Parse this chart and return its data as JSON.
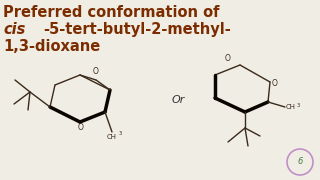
{
  "bg_color": "#f0ede5",
  "title_line1": "Preferred conformation of",
  "title_line2_italic": "cis",
  "title_line2_normal": "-5-tert-butyl-2-methyl-",
  "title_line3": "1,3-dioxane",
  "title_color": "#7B2D00",
  "title_fontsize": 10.5,
  "or_text": "Or",
  "line_color": "#3a2a1a",
  "bold_line_color": "#0a0500",
  "logo_color": "#c090c0"
}
